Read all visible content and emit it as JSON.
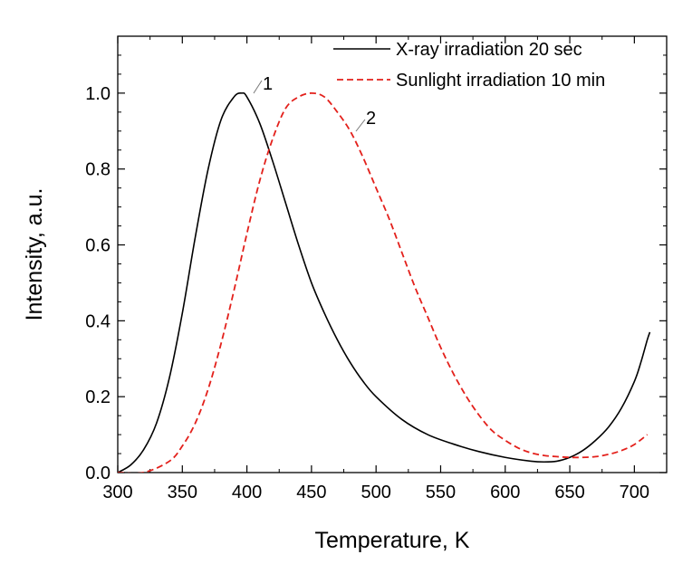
{
  "chart_data": {
    "type": "line",
    "title": "",
    "xlabel": "Temperature, K",
    "ylabel": "Intensity, a.u.",
    "xlim": [
      300,
      725
    ],
    "ylim": [
      0,
      1.15
    ],
    "x_ticks": [
      300,
      350,
      400,
      450,
      500,
      550,
      600,
      650,
      700
    ],
    "x_tick_labels": [
      "300",
      "350",
      "400",
      "450",
      "500",
      "550",
      "600",
      "650",
      "700"
    ],
    "y_ticks": [
      0.0,
      0.2,
      0.4,
      0.6,
      0.8,
      1.0
    ],
    "y_tick_labels": [
      "0.0",
      "0.2",
      "0.4",
      "0.6",
      "0.8",
      "1.0"
    ],
    "grid": false,
    "legend_position": "top-right",
    "series": [
      {
        "name": "X-ray irradiation 20 sec",
        "label": "1",
        "color": "#000000",
        "dash": "solid",
        "x": [
          300,
          310,
          320,
          330,
          340,
          350,
          360,
          370,
          380,
          390,
          396,
          400,
          410,
          420,
          430,
          440,
          450,
          460,
          470,
          480,
          490,
          500,
          520,
          540,
          560,
          580,
          600,
          620,
          630,
          640,
          650,
          660,
          670,
          680,
          690,
          700,
          705,
          710,
          712
        ],
        "y": [
          0.0,
          0.02,
          0.06,
          0.13,
          0.25,
          0.42,
          0.62,
          0.8,
          0.93,
          0.99,
          1.0,
          0.99,
          0.92,
          0.82,
          0.71,
          0.6,
          0.5,
          0.42,
          0.35,
          0.29,
          0.24,
          0.2,
          0.14,
          0.1,
          0.075,
          0.055,
          0.04,
          0.03,
          0.028,
          0.03,
          0.04,
          0.058,
          0.085,
          0.12,
          0.17,
          0.24,
          0.29,
          0.35,
          0.37
        ]
      },
      {
        "name": "Sunlight irradiation 10 min",
        "label": "2",
        "color": "#e3201b",
        "dash": "dashed",
        "x": [
          300,
          320,
          340,
          350,
          360,
          370,
          380,
          390,
          400,
          410,
          420,
          430,
          440,
          450,
          460,
          470,
          480,
          490,
          500,
          510,
          520,
          530,
          540,
          550,
          560,
          570,
          580,
          590,
          600,
          610,
          620,
          630,
          640,
          650,
          660,
          670,
          680,
          690,
          700,
          710
        ],
        "y": [
          0.0,
          0.0,
          0.03,
          0.07,
          0.13,
          0.22,
          0.34,
          0.48,
          0.63,
          0.77,
          0.88,
          0.96,
          0.99,
          1.0,
          0.99,
          0.95,
          0.9,
          0.83,
          0.75,
          0.67,
          0.58,
          0.49,
          0.41,
          0.33,
          0.26,
          0.2,
          0.15,
          0.11,
          0.085,
          0.065,
          0.052,
          0.045,
          0.042,
          0.04,
          0.04,
          0.042,
          0.048,
          0.058,
          0.074,
          0.1
        ]
      }
    ],
    "annotations": [
      {
        "text": "1",
        "series": 0,
        "at_x": 400
      },
      {
        "text": "2",
        "series": 1,
        "at_x": 480
      }
    ]
  }
}
